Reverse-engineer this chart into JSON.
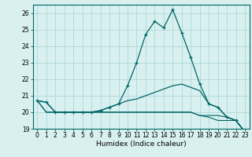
{
  "xlabel": "Humidex (Indice chaleur)",
  "x": [
    0,
    1,
    2,
    3,
    4,
    5,
    6,
    7,
    8,
    9,
    10,
    11,
    12,
    13,
    14,
    15,
    16,
    17,
    18,
    19,
    20,
    21,
    22,
    23
  ],
  "series1": [
    20.7,
    20.6,
    20.0,
    20.0,
    20.0,
    20.0,
    20.0,
    20.1,
    20.3,
    20.5,
    21.6,
    23.0,
    24.7,
    25.5,
    25.1,
    26.2,
    24.8,
    23.3,
    21.7,
    20.5,
    20.3,
    19.7,
    19.5,
    18.8
  ],
  "series2": [
    20.7,
    20.6,
    20.0,
    20.0,
    20.0,
    20.0,
    20.0,
    20.1,
    20.3,
    20.5,
    20.7,
    20.8,
    21.0,
    21.2,
    21.4,
    21.6,
    21.7,
    21.5,
    21.3,
    20.5,
    20.3,
    19.7,
    19.5,
    18.8
  ],
  "series3": [
    20.7,
    20.0,
    20.0,
    20.0,
    20.0,
    20.0,
    20.0,
    20.0,
    20.0,
    20.0,
    20.0,
    20.0,
    20.0,
    20.0,
    20.0,
    20.0,
    20.0,
    20.0,
    19.8,
    19.8,
    19.8,
    19.7,
    19.5,
    18.8
  ],
  "series4": [
    20.7,
    20.0,
    20.0,
    20.0,
    20.0,
    20.0,
    20.0,
    20.0,
    20.0,
    20.0,
    20.0,
    20.0,
    20.0,
    20.0,
    20.0,
    20.0,
    20.0,
    20.0,
    19.8,
    19.7,
    19.5,
    19.5,
    19.5,
    18.8
  ],
  "line_color": "#006666",
  "bg_color": "#d8f0f0",
  "grid_color": "#b0d8d8",
  "ylim": [
    19.0,
    26.5
  ],
  "yticks": [
    19,
    20,
    21,
    22,
    23,
    24,
    25,
    26
  ],
  "xlim": [
    -0.5,
    23.5
  ],
  "xlabel_fontsize": 6.5,
  "tick_fontsize": 5.5
}
